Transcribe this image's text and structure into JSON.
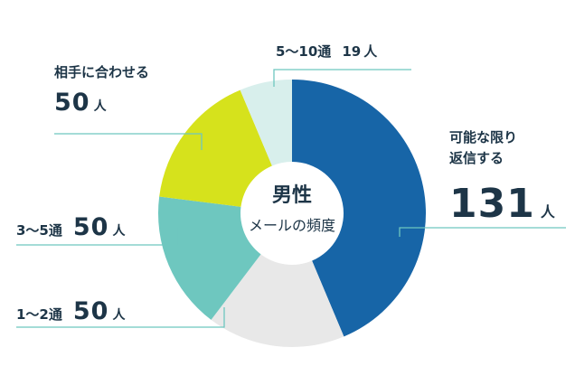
{
  "chart_data": {
    "type": "pie",
    "center_title": "男性",
    "center_subtitle": "メールの頻度",
    "slices": [
      {
        "label": "可能な限り返信する",
        "label_line1": "可能な限り",
        "label_line2": "返信する",
        "value": 131,
        "value_text": "131",
        "unit": "人",
        "color": "#1765a7"
      },
      {
        "label": "1～2通",
        "value": 50,
        "value_text": "50",
        "unit": "人",
        "color": "#e8e8e8"
      },
      {
        "label": "3～5通",
        "value": 50,
        "value_text": "50",
        "unit": "人",
        "color": "#6ec7bf"
      },
      {
        "label": "相手に合わせる",
        "value": 50,
        "value_text": "50",
        "unit": "人",
        "color": "#d6e21c"
      },
      {
        "label": "5～10通",
        "value": 19,
        "value_text": "19",
        "unit": "人",
        "color": "#d8efec"
      }
    ],
    "leader_color": "#6ec7bf"
  }
}
